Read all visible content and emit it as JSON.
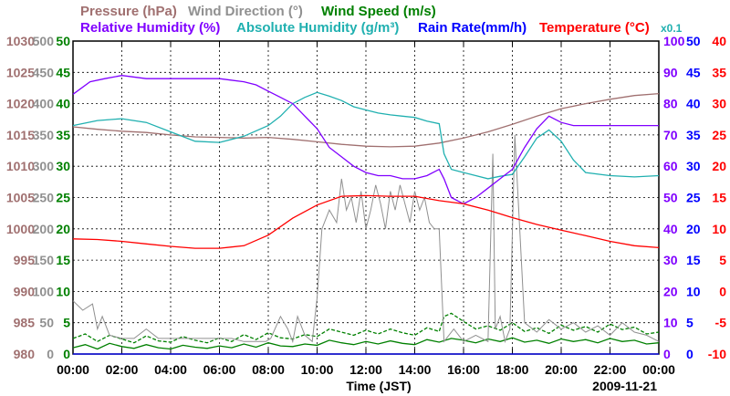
{
  "chart_data": {
    "type": "line",
    "title": "",
    "date_label": "2009-11-21",
    "xlabel": "Time (JST)",
    "x_ticks": [
      "00:00",
      "02:00",
      "04:00",
      "06:00",
      "08:00",
      "10:00",
      "12:00",
      "14:00",
      "16:00",
      "18:00",
      "20:00",
      "22:00",
      "00:00"
    ],
    "x_range_hours": [
      0,
      24
    ],
    "grid": true,
    "legend": [
      {
        "text": "Pressure (hPa)",
        "color": "#a07070"
      },
      {
        "text": "Wind Direction (°)",
        "color": "#909090"
      },
      {
        "text": "Wind Speed (m/s)",
        "color": "#008000"
      },
      {
        "text": "Relative Humidity (%)",
        "color": "#8000ff"
      },
      {
        "text": "Absolute Humidity (g/m³)",
        "color": "#20b0b0"
      },
      {
        "text": "Rain Rate(mm/h)",
        "color": "#0000ff"
      },
      {
        "text": "Temperature (°C)",
        "color": "#ff0000"
      },
      {
        "text": "x0.1",
        "color": "#20b0b0"
      }
    ],
    "axes": {
      "pressure": {
        "color": "#a07070",
        "range": [
          980,
          1030
        ],
        "ticks": [
          "1030",
          "1025",
          "1020",
          "1015",
          "1010",
          "1005",
          "1000",
          "995",
          "990",
          "985",
          "980"
        ]
      },
      "wind_direction": {
        "color": "#909090",
        "range": [
          0,
          500
        ],
        "ticks": [
          "500",
          "450",
          "400",
          "350",
          "300",
          "250",
          "200",
          "150",
          "100",
          "50",
          "0"
        ]
      },
      "wind_speed": {
        "color": "#008000",
        "range": [
          0,
          50
        ],
        "ticks": [
          "50",
          "45",
          "40",
          "35",
          "30",
          "25",
          "20",
          "15",
          "10",
          "5",
          "0"
        ]
      },
      "relative_humidity": {
        "color": "#8000ff",
        "range": [
          0,
          100
        ],
        "ticks": [
          "100",
          "90",
          "80",
          "70",
          "60",
          "50",
          "40",
          "30",
          "20",
          "10",
          "0"
        ]
      },
      "rain_rate": {
        "color": "#0000ff",
        "range": [
          0,
          50
        ],
        "ticks": [
          "50",
          "45",
          "40",
          "35",
          "30",
          "25",
          "20",
          "15",
          "10",
          "5",
          "0"
        ]
      },
      "temperature": {
        "color": "#ff0000",
        "range": [
          -10,
          40
        ],
        "ticks": [
          "40",
          "35",
          "30",
          "25",
          "20",
          "15",
          "10",
          "5",
          "0",
          "-5",
          "-10"
        ]
      }
    },
    "series": [
      {
        "key": "pressure",
        "color": "#a07070",
        "x": [
          0,
          1,
          2,
          3,
          4,
          5,
          6,
          7,
          8,
          9,
          10,
          11,
          12,
          13,
          14,
          15,
          16,
          17,
          18,
          19,
          20,
          21,
          22,
          23,
          24
        ],
        "values": [
          1016.3,
          1015.9,
          1015.6,
          1015.4,
          1015.0,
          1014.7,
          1014.6,
          1014.5,
          1014.6,
          1014.3,
          1013.9,
          1013.5,
          1013.2,
          1013.1,
          1013.2,
          1013.7,
          1014.5,
          1015.5,
          1016.7,
          1018.0,
          1019.2,
          1020.0,
          1020.7,
          1021.3,
          1021.6
        ]
      },
      {
        "key": "temperature",
        "color": "#ff0000",
        "x": [
          0,
          1,
          2,
          3,
          4,
          5,
          6,
          7,
          8,
          9,
          10,
          11,
          12,
          13,
          14,
          15,
          16,
          17,
          18,
          19,
          20,
          21,
          22,
          23,
          24
        ],
        "values": [
          8.4,
          8.3,
          8.0,
          7.6,
          7.2,
          6.9,
          6.9,
          7.3,
          9.0,
          11.7,
          13.8,
          15.2,
          15.3,
          15.2,
          15.2,
          14.5,
          14.0,
          13.0,
          11.8,
          10.7,
          9.8,
          8.9,
          8.0,
          7.3,
          7.0
        ]
      },
      {
        "key": "relative_humidity",
        "color": "#8000ff",
        "x": [
          0,
          0.7,
          1.3,
          2,
          3,
          4,
          5,
          6,
          7,
          7.5,
          8,
          8.5,
          9,
          9.5,
          10,
          10.5,
          11,
          11.5,
          12,
          12.5,
          13,
          13.5,
          14,
          14.5,
          15,
          15.2,
          15.5,
          16,
          16.5,
          17,
          17.5,
          18,
          18.5,
          19,
          19.5,
          20,
          20.5,
          21,
          22,
          23,
          24
        ],
        "values": [
          83,
          87,
          88,
          89,
          88,
          88,
          88,
          88,
          87,
          86,
          84,
          82,
          80,
          76,
          72,
          66,
          63,
          60,
          58,
          57,
          57,
          56,
          56,
          57,
          59,
          56,
          50,
          48,
          50,
          53,
          56,
          59,
          66,
          72,
          76,
          74,
          73,
          73,
          73,
          73,
          73
        ]
      },
      {
        "key": "absolute_humidity",
        "color": "#20b0b0",
        "display_range": [
          0,
          50
        ],
        "x": [
          0,
          1,
          2,
          3,
          4,
          5,
          6,
          7,
          8,
          8.5,
          9,
          9.5,
          10,
          10.5,
          11,
          11.5,
          12,
          12.5,
          13,
          13.5,
          14,
          14.5,
          15,
          15.2,
          15.5,
          16,
          16.5,
          17,
          17.5,
          18,
          18.5,
          19,
          19.5,
          20,
          20.5,
          21,
          22,
          23,
          24
        ],
        "values": [
          36.5,
          37.3,
          37.6,
          37.0,
          35.5,
          34.0,
          33.8,
          34.8,
          36.5,
          38.0,
          40.0,
          41.0,
          41.8,
          41.2,
          40.5,
          39.5,
          39.0,
          38.5,
          38.2,
          38.0,
          37.8,
          37.2,
          36.8,
          32.0,
          29.5,
          29.0,
          28.5,
          28.0,
          28.4,
          28.7,
          31.5,
          34.5,
          35.8,
          34.0,
          31.0,
          29.0,
          28.5,
          28.3,
          28.5
        ]
      },
      {
        "key": "wind_direction",
        "color": "#909090",
        "x": [
          0,
          0.4,
          0.8,
          1.0,
          1.2,
          1.5,
          2,
          2.5,
          3,
          3.5,
          4,
          4.5,
          5,
          5.5,
          6,
          6.5,
          7,
          7.5,
          7.9,
          8.1,
          8.5,
          8.8,
          9.0,
          9.2,
          9.5,
          9.8,
          10.0,
          10.2,
          10.5,
          10.8,
          11.0,
          11.2,
          11.4,
          11.6,
          11.8,
          12.0,
          12.2,
          12.4,
          12.6,
          12.8,
          13.0,
          13.2,
          13.4,
          13.6,
          13.8,
          14.0,
          14.2,
          14.4,
          14.6,
          14.8,
          15.0,
          15.2,
          15.6,
          16.0,
          16.5,
          17.0,
          17.2,
          17.3,
          17.5,
          17.7,
          17.9,
          18.1,
          18.5,
          19,
          19.5,
          20,
          20.5,
          21,
          21.5,
          22,
          22.5,
          23,
          23.5,
          24
        ],
        "values": [
          85,
          70,
          80,
          40,
          60,
          30,
          25,
          25,
          40,
          25,
          25,
          25,
          25,
          25,
          25,
          25,
          20,
          20,
          20,
          25,
          60,
          40,
          20,
          60,
          30,
          20,
          90,
          200,
          230,
          210,
          280,
          230,
          250,
          210,
          260,
          200,
          230,
          270,
          240,
          200,
          260,
          230,
          270,
          240,
          210,
          260,
          230,
          250,
          210,
          200,
          200,
          20,
          40,
          20,
          30,
          20,
          320,
          40,
          60,
          20,
          40,
          350,
          50,
          35,
          55,
          40,
          50,
          35,
          45,
          30,
          50,
          35,
          30,
          20
        ]
      },
      {
        "key": "wind_speed",
        "color": "#008000",
        "x": [
          0,
          0.5,
          1,
          1.5,
          2,
          2.5,
          3,
          3.5,
          4,
          4.5,
          5,
          5.5,
          6,
          6.5,
          7,
          7.5,
          8,
          8.5,
          9,
          9.5,
          10,
          10.5,
          11,
          11.5,
          12,
          12.5,
          13,
          13.5,
          14,
          14.5,
          15,
          15.5,
          16,
          16.5,
          17,
          17.5,
          18,
          18.5,
          19,
          19.5,
          20,
          20.5,
          21,
          21.5,
          22,
          22.5,
          23,
          23.5,
          24
        ],
        "values": [
          1.0,
          1.5,
          0.8,
          1.7,
          1.2,
          0.9,
          1.5,
          1.0,
          0.8,
          1.4,
          1.1,
          0.9,
          1.3,
          1.0,
          1.6,
          1.1,
          1.8,
          1.3,
          1.2,
          1.6,
          1.4,
          2.2,
          1.8,
          1.5,
          2.0,
          1.6,
          2.1,
          1.7,
          1.5,
          2.3,
          1.9,
          2.5,
          2.2,
          1.8,
          2.4,
          2.0,
          2.6,
          1.9,
          2.2,
          1.7,
          2.4,
          2.0,
          2.3,
          1.8,
          2.5,
          2.0,
          2.2,
          1.6,
          1.8
        ]
      },
      {
        "key": "wind_speed_max",
        "color": "#008000",
        "dashed": true,
        "x": [
          0,
          0.5,
          1,
          1.5,
          2,
          2.5,
          3,
          3.5,
          4,
          4.5,
          5,
          5.5,
          6,
          6.5,
          7,
          7.5,
          8,
          8.5,
          9,
          9.5,
          10,
          10.5,
          11,
          11.5,
          12,
          12.5,
          13,
          13.5,
          14,
          14.5,
          15,
          15.2,
          15.5,
          16,
          16.5,
          17,
          17.5,
          18,
          18.5,
          19,
          19.5,
          20,
          20.5,
          21,
          21.5,
          22,
          22.5,
          23,
          23.5,
          24
        ],
        "values": [
          2.5,
          3.2,
          2.0,
          3.0,
          2.4,
          1.8,
          2.9,
          2.1,
          1.9,
          2.8,
          2.2,
          1.8,
          2.6,
          2.0,
          3.1,
          2.3,
          3.4,
          2.6,
          2.4,
          3.1,
          2.8,
          4.0,
          3.5,
          3.0,
          3.8,
          3.2,
          4.0,
          3.4,
          3.0,
          4.2,
          3.6,
          6.0,
          6.5,
          5.2,
          4.0,
          4.5,
          3.8,
          5.0,
          3.6,
          4.2,
          3.3,
          4.6,
          3.8,
          4.4,
          3.5,
          4.8,
          3.9,
          4.3,
          3.2,
          3.5
        ]
      },
      {
        "key": "rain_rate",
        "color": "#0000ff",
        "x": [
          0,
          24
        ],
        "values": [
          0,
          0
        ]
      }
    ]
  }
}
